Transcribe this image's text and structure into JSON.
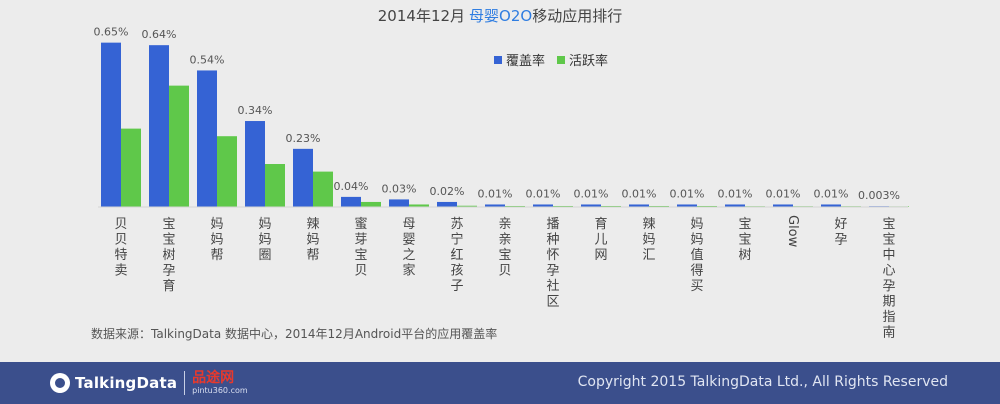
{
  "chart_data": {
    "type": "bar",
    "title_prefix": "2014年12月",
    "title_highlight": "母婴O2O",
    "title_suffix": "移动应用排行",
    "categories": [
      "贝贝特卖",
      "宝宝树孕育",
      "妈妈帮",
      "妈妈圈",
      "辣妈帮",
      "蜜芽宝贝",
      "母婴之家",
      "苏宁红孩子",
      "亲亲宝贝",
      "播种怀孕社区",
      "育儿网",
      "辣妈汇",
      "妈妈值得买",
      "宝宝树",
      "Glow",
      "好孕",
      "宝宝中心孕期指南"
    ],
    "series": [
      {
        "name": "覆盖率",
        "color": "#3563d4",
        "values": [
          0.65,
          0.64,
          0.54,
          0.34,
          0.23,
          0.04,
          0.03,
          0.02,
          0.01,
          0.01,
          0.01,
          0.01,
          0.01,
          0.01,
          0.01,
          0.01,
          0.003
        ]
      },
      {
        "name": "活跃率",
        "color": "#5fc84a",
        "values": [
          0.31,
          0.48,
          0.28,
          0.17,
          0.14,
          0.02,
          0.01,
          0.005,
          0.004,
          0.004,
          0.004,
          0.004,
          0.004,
          0.003,
          0.003,
          0.003,
          0.002
        ]
      }
    ],
    "data_labels": [
      "0.65%",
      "0.64%",
      "0.54%",
      "0.34%",
      "0.23%",
      "0.04%",
      "0.03%",
      "0.02%",
      "0.01%",
      "0.01%",
      "0.01%",
      "0.01%",
      "0.01%",
      "0.01%",
      "0.01%",
      "0.01%",
      "0.003%"
    ],
    "ylim": [
      0,
      0.7
    ],
    "legend_position": "top-right",
    "grid": false,
    "source_note": "数据来源：TalkingData 数据中心，2014年12月Android平台的应用覆盖率"
  },
  "colors": {
    "title": "#444444",
    "highlight": "#2f7de1",
    "footer_bg": "#3b4f8c"
  },
  "footer": {
    "brand": "TalkingData",
    "partner_name": "品途网",
    "partner_url": "pintu360.com",
    "copyright": "Copyright 2015 TalkingData Ltd., All Rights Reserved"
  }
}
